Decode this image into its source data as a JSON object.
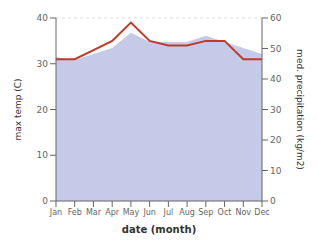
{
  "chart_data": {
    "type": "line",
    "xlabel": "date (month)",
    "ylabel": "max temp (C)",
    "y2label": "med. precipitation (kg/m2)",
    "categories": [
      "Jan",
      "Feb",
      "Mar",
      "Apr",
      "May",
      "Jun",
      "Jul",
      "Aug",
      "Sep",
      "Oct",
      "Nov",
      "Dec"
    ],
    "series": [
      {
        "type": "area",
        "axis": "y2",
        "color": "#c5cae9",
        "values": [
          47,
          46,
          48,
          50,
          55,
          52,
          52,
          52,
          54,
          52,
          50,
          48
        ]
      },
      {
        "type": "line",
        "color": "#c0392b",
        "values": [
          31,
          31,
          33,
          35,
          39,
          35,
          34,
          34,
          35,
          35,
          31,
          31
        ]
      }
    ],
    "ylim": [
      0,
      40
    ],
    "yticks": [
      0,
      10,
      20,
      30,
      40
    ],
    "y2lim": [
      0,
      60
    ],
    "y2ticks": [
      0,
      10,
      20,
      30,
      40,
      50,
      60
    ],
    "grid": true
  }
}
